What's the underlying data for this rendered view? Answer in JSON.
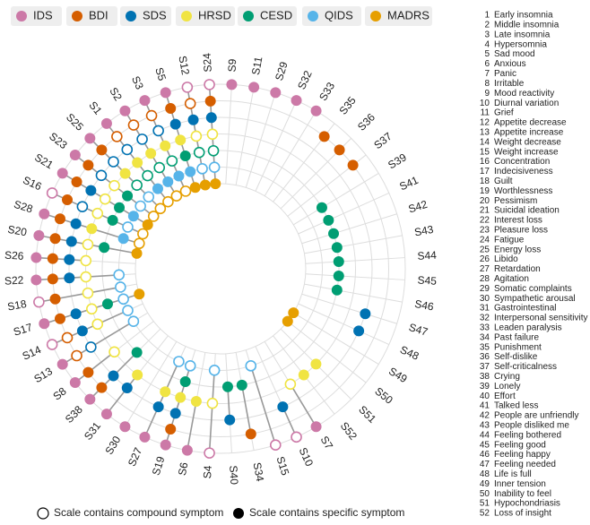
{
  "chart_data": {
    "type": "radial-dot",
    "categories": [
      "S24",
      "S9",
      "S11",
      "S29",
      "S32",
      "S33",
      "S35",
      "S36",
      "S37",
      "S39",
      "S41",
      "S42",
      "S43",
      "S44",
      "S45",
      "S46",
      "S47",
      "S48",
      "S49",
      "S50",
      "S51",
      "S52",
      "S7",
      "S10",
      "S15",
      "S34",
      "S40",
      "S4",
      "S6",
      "S19",
      "S27",
      "S30",
      "S31",
      "S38",
      "S8",
      "S13",
      "S14",
      "S17",
      "S18",
      "S22",
      "S26",
      "S20",
      "S28",
      "S16",
      "S21",
      "S23",
      "S25",
      "S1",
      "S2",
      "S3",
      "S5",
      "S12"
    ],
    "series": [
      {
        "name": "IDS",
        "color": "#cc79a7",
        "values": [
          "compound",
          "specific",
          "specific",
          "specific",
          "specific",
          "specific",
          null,
          null,
          null,
          null,
          null,
          null,
          null,
          null,
          null,
          null,
          null,
          null,
          null,
          null,
          null,
          null,
          "specific",
          "compound",
          "compound",
          null,
          null,
          "compound",
          "specific",
          "specific",
          "specific",
          "specific",
          "specific",
          "specific",
          "specific",
          "specific",
          "compound",
          "specific",
          "compound",
          "specific",
          "specific",
          "specific",
          "specific",
          "compound",
          "specific",
          "specific",
          "specific",
          "specific",
          "specific",
          "specific",
          "specific",
          "compound"
        ]
      },
      {
        "name": "BDI",
        "color": "#d55e00",
        "values": [
          "specific",
          null,
          null,
          null,
          null,
          null,
          "specific",
          "specific",
          "specific",
          null,
          null,
          null,
          null,
          null,
          null,
          null,
          null,
          null,
          null,
          null,
          null,
          null,
          null,
          null,
          null,
          "specific",
          null,
          null,
          null,
          "specific",
          null,
          null,
          null,
          "specific",
          "specific",
          "compound",
          "compound",
          "specific",
          "specific",
          "specific",
          "specific",
          "specific",
          "specific",
          "specific",
          "specific",
          "specific",
          "specific",
          "compound",
          "compound",
          "compound",
          "specific",
          "compound"
        ]
      },
      {
        "name": "SDS",
        "color": "#0072b2",
        "values": [
          "specific",
          null,
          null,
          null,
          null,
          null,
          null,
          null,
          null,
          null,
          null,
          null,
          null,
          null,
          null,
          null,
          "specific",
          "specific",
          null,
          null,
          null,
          null,
          null,
          "specific",
          null,
          null,
          "specific",
          null,
          null,
          "specific",
          "specific",
          null,
          "specific",
          "specific",
          null,
          "compound",
          "specific",
          "specific",
          null,
          "specific",
          "specific",
          "specific",
          "specific",
          "compound",
          "specific",
          "compound",
          "compound",
          "compound",
          "compound",
          "compound",
          "specific",
          "specific"
        ]
      },
      {
        "name": "HRSD",
        "color": "#f0e442",
        "values": [
          "compound",
          null,
          null,
          null,
          null,
          null,
          null,
          null,
          null,
          null,
          null,
          null,
          null,
          null,
          null,
          null,
          null,
          null,
          null,
          null,
          "specific",
          "specific",
          "compound",
          null,
          null,
          null,
          null,
          "compound",
          "specific",
          "specific",
          "specific",
          null,
          "specific",
          null,
          "compound",
          null,
          "compound",
          "compound",
          "compound",
          "compound",
          "compound",
          "compound",
          "specific",
          "compound",
          "compound",
          "compound",
          "specific",
          "specific",
          "specific",
          "specific",
          "specific",
          "compound"
        ]
      },
      {
        "name": "CESD",
        "color": "#009e73",
        "values": [
          "compound",
          null,
          null,
          null,
          null,
          null,
          null,
          null,
          null,
          "specific",
          "specific",
          "specific",
          "specific",
          "specific",
          "specific",
          "specific",
          null,
          null,
          null,
          null,
          null,
          null,
          null,
          null,
          null,
          "specific",
          "specific",
          null,
          null,
          "specific",
          null,
          null,
          null,
          "specific",
          null,
          null,
          null,
          "specific",
          null,
          null,
          null,
          "specific",
          null,
          "specific",
          "specific",
          "specific",
          "compound",
          "compound",
          "compound",
          "compound",
          "specific",
          "compound"
        ]
      },
      {
        "name": "QIDS",
        "color": "#56b4e9",
        "values": [
          "compound",
          null,
          null,
          null,
          null,
          null,
          null,
          null,
          null,
          null,
          null,
          null,
          null,
          null,
          null,
          null,
          null,
          null,
          null,
          null,
          null,
          null,
          null,
          null,
          "compound",
          null,
          null,
          "compound",
          null,
          "compound",
          "compound",
          null,
          null,
          null,
          null,
          "compound",
          "compound",
          "compound",
          "compound",
          "compound",
          null,
          null,
          "specific",
          "compound",
          "specific",
          "compound",
          "compound",
          "specific",
          "specific",
          "specific",
          "specific",
          "compound"
        ]
      },
      {
        "name": "MADRS",
        "color": "#e69f00",
        "values": [
          "specific",
          null,
          null,
          null,
          null,
          null,
          null,
          null,
          null,
          null,
          null,
          null,
          null,
          null,
          null,
          null,
          null,
          null,
          "specific",
          "specific",
          null,
          null,
          null,
          null,
          null,
          null,
          null,
          null,
          null,
          null,
          null,
          null,
          null,
          null,
          null,
          null,
          null,
          "specific",
          null,
          null,
          null,
          "specific",
          "compound",
          "compound",
          "specific",
          "compound",
          "compound",
          "compound",
          "compound",
          "compound",
          "specific",
          "specific"
        ]
      }
    ],
    "marker_legend": {
      "compound": "Scale contains compound symptom",
      "specific": "Scale contains specific symptom"
    },
    "symptom_key": [
      {
        "number": 1,
        "label": "Early insomnia"
      },
      {
        "number": 2,
        "label": "Middle insomnia"
      },
      {
        "number": 3,
        "label": "Late insomnia"
      },
      {
        "number": 4,
        "label": "Hypersomnia"
      },
      {
        "number": 5,
        "label": "Sad mood"
      },
      {
        "number": 6,
        "label": "Anxious"
      },
      {
        "number": 7,
        "label": "Panic"
      },
      {
        "number": 8,
        "label": "Irritable"
      },
      {
        "number": 9,
        "label": "Mood reactivity"
      },
      {
        "number": 10,
        "label": "Diurnal variation"
      },
      {
        "number": 11,
        "label": "Grief"
      },
      {
        "number": 12,
        "label": "Appetite decrease"
      },
      {
        "number": 13,
        "label": "Appetite increase"
      },
      {
        "number": 14,
        "label": "Weight decrease"
      },
      {
        "number": 15,
        "label": "Weight increase"
      },
      {
        "number": 16,
        "label": "Concentration"
      },
      {
        "number": 17,
        "label": "Indecisiveness"
      },
      {
        "number": 18,
        "label": "Guilt"
      },
      {
        "number": 19,
        "label": "Worthlessness"
      },
      {
        "number": 20,
        "label": "Pessimism"
      },
      {
        "number": 21,
        "label": "Suicidal ideation"
      },
      {
        "number": 22,
        "label": "Interest loss"
      },
      {
        "number": 23,
        "label": "Pleasure loss"
      },
      {
        "number": 24,
        "label": "Fatigue"
      },
      {
        "number": 25,
        "label": "Energy loss"
      },
      {
        "number": 26,
        "label": "Libido"
      },
      {
        "number": 27,
        "label": "Retardation"
      },
      {
        "number": 28,
        "label": "Agitation"
      },
      {
        "number": 29,
        "label": "Somatic complaints"
      },
      {
        "number": 30,
        "label": "Sympathetic arousal"
      },
      {
        "number": 31,
        "label": "Gastrointestinal"
      },
      {
        "number": 32,
        "label": "Interpersonal sensitivity"
      },
      {
        "number": 33,
        "label": "Leaden paralysis"
      },
      {
        "number": 34,
        "label": "Past failure"
      },
      {
        "number": 35,
        "label": "Punishment"
      },
      {
        "number": 36,
        "label": "Self-dislike"
      },
      {
        "number": 37,
        "label": "Self-criticalness"
      },
      {
        "number": 38,
        "label": "Crying"
      },
      {
        "number": 39,
        "label": "Lonely"
      },
      {
        "number": 40,
        "label": "Effort"
      },
      {
        "number": 41,
        "label": "Talked less"
      },
      {
        "number": 42,
        "label": "People are unfriendly"
      },
      {
        "number": 43,
        "label": "People disliked me"
      },
      {
        "number": 44,
        "label": "Feeling bothered"
      },
      {
        "number": 45,
        "label": "Feeling good"
      },
      {
        "number": 46,
        "label": "Feeling happy"
      },
      {
        "number": 47,
        "label": "Feeling needed"
      },
      {
        "number": 48,
        "label": "Life is full"
      },
      {
        "number": 49,
        "label": "Inner tension"
      },
      {
        "number": 50,
        "label": "Inability to feel"
      },
      {
        "number": 51,
        "label": "Hypochondriasis"
      },
      {
        "number": 52,
        "label": "Loss of insight"
      }
    ]
  }
}
